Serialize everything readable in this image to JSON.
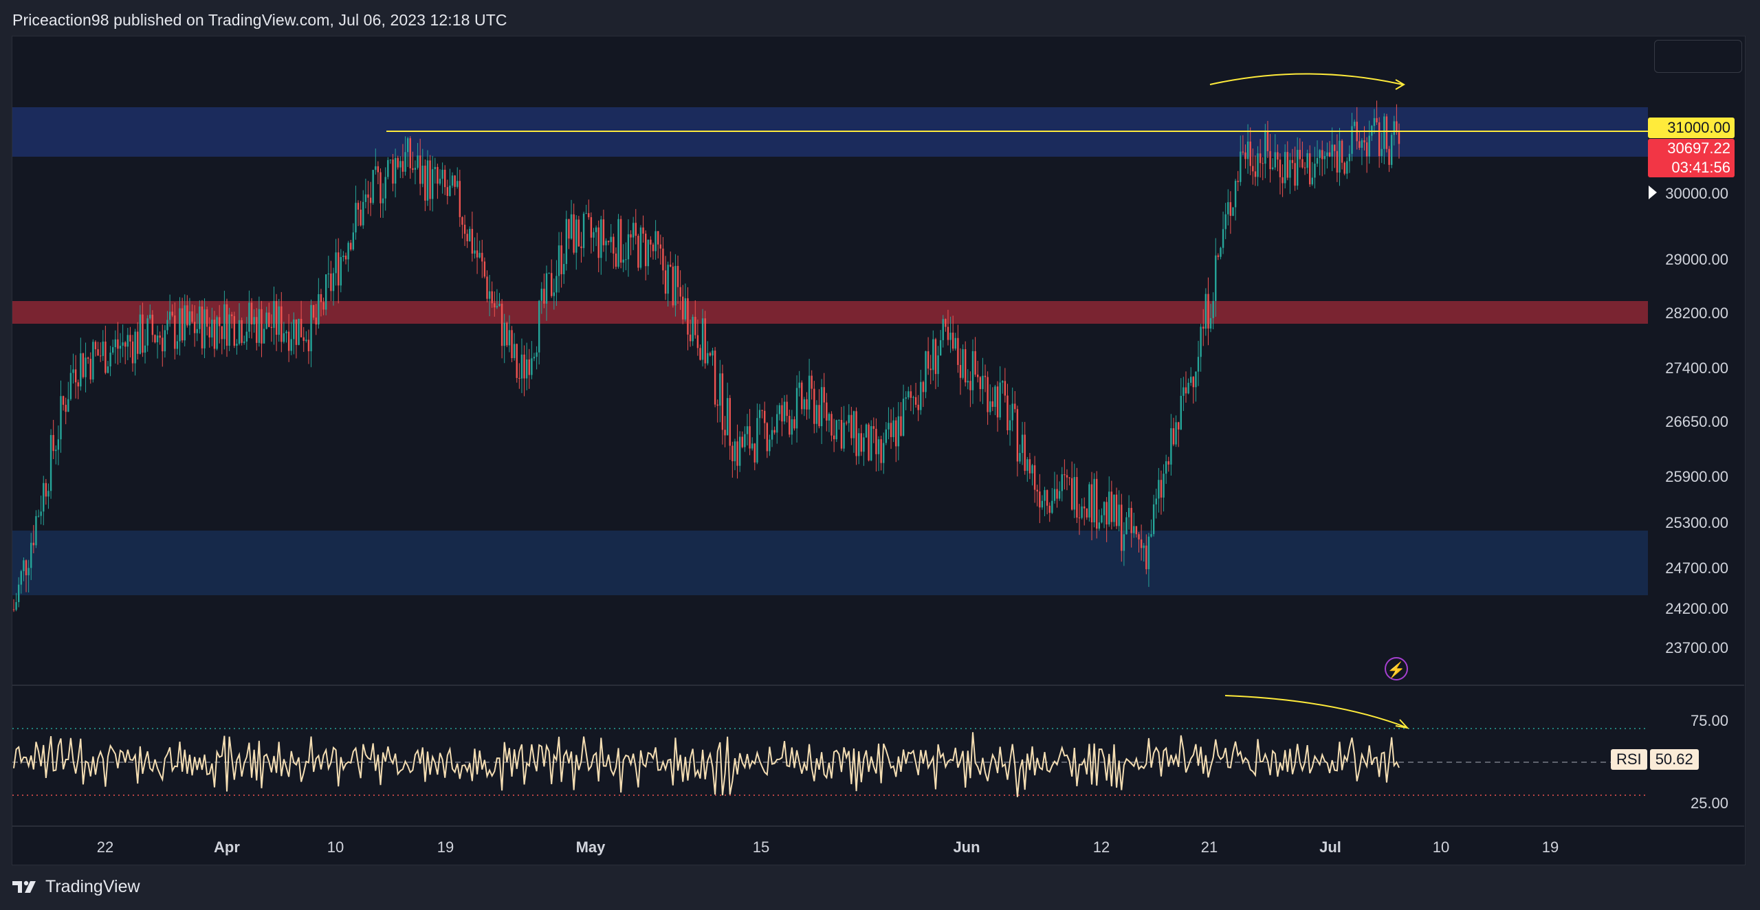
{
  "header": {
    "publisher_line": "Priceaction98 published on TradingView.com, Jul 06, 2023 12:18 UTC"
  },
  "footer": {
    "brand": "TradingView"
  },
  "price_axis": {
    "labels": [
      "30000.00",
      "29000.00",
      "28200.00",
      "27400.00",
      "26650.00",
      "25900.00",
      "25300.00",
      "24700.00",
      "24200.00",
      "23700.00"
    ]
  },
  "price_tags": {
    "level_31000": "31000.00",
    "last_price": "30697.22",
    "countdown": "03:41:56"
  },
  "rsi": {
    "name": "RSI",
    "value": "50.62",
    "axis_labels": [
      "75.00",
      "25.00"
    ]
  },
  "time_axis": {
    "labels": [
      "22",
      "Apr",
      "10",
      "19",
      "May",
      "15",
      "Jun",
      "12",
      "21",
      "Jul",
      "10",
      "19"
    ]
  },
  "colors": {
    "background": "#131722",
    "bull": "#26a69a",
    "bear": "#ef5350",
    "supply_zone": "#1b2b5c",
    "resistance_band": "#7a2431",
    "demand_zone": "#16294a",
    "annotation": "#ffeb3b",
    "rsi_line": "#f5deb3"
  },
  "chart_data": {
    "type": "candlestick",
    "symbol_price_series": [
      {
        "date": "2023-03-13",
        "close": 24200
      },
      {
        "date": "2023-03-18",
        "close": 27600
      },
      {
        "date": "2023-03-24",
        "close": 28000
      },
      {
        "date": "2023-03-31",
        "close": 28200
      },
      {
        "date": "2023-04-07",
        "close": 28100
      },
      {
        "date": "2023-04-10",
        "close": 29500
      },
      {
        "date": "2023-04-14",
        "close": 30500
      },
      {
        "date": "2023-04-19",
        "close": 29800
      },
      {
        "date": "2023-04-24",
        "close": 27400
      },
      {
        "date": "2023-04-28",
        "close": 29400
      },
      {
        "date": "2023-05-05",
        "close": 29200
      },
      {
        "date": "2023-05-09",
        "close": 28000
      },
      {
        "date": "2023-05-12",
        "close": 26400
      },
      {
        "date": "2023-05-18",
        "close": 27100
      },
      {
        "date": "2023-05-24",
        "close": 26300
      },
      {
        "date": "2023-05-29",
        "close": 27900
      },
      {
        "date": "2023-06-03",
        "close": 27100
      },
      {
        "date": "2023-06-06",
        "close": 25900
      },
      {
        "date": "2023-06-10",
        "close": 25800
      },
      {
        "date": "2023-06-15",
        "close": 25050
      },
      {
        "date": "2023-06-20",
        "close": 28300
      },
      {
        "date": "2023-06-23",
        "close": 30600
      },
      {
        "date": "2023-06-28",
        "close": 30300
      },
      {
        "date": "2023-07-03",
        "close": 30700
      },
      {
        "date": "2023-07-06",
        "close": 30697.22
      }
    ],
    "zones": [
      {
        "name": "supply",
        "from": 30600,
        "to": 31400
      },
      {
        "name": "resistance",
        "from": 28050,
        "to": 28350
      },
      {
        "name": "demand",
        "from": 24300,
        "to": 25300
      }
    ],
    "horizontal_level": 31000,
    "rsi_levels": [
      75,
      50,
      25
    ],
    "ylim": [
      23500,
      31600
    ]
  }
}
